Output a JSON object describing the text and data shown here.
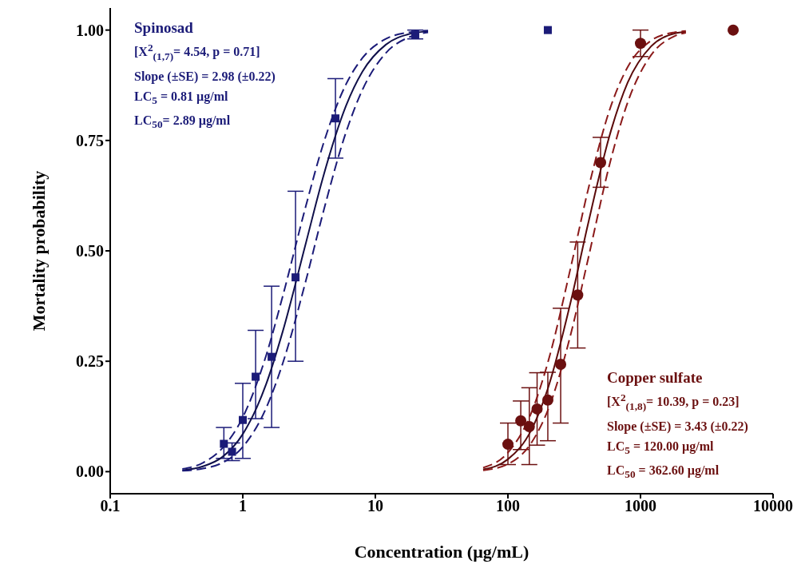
{
  "chart_data": {
    "type": "scatter",
    "xlabel": "Concentration (µg/mL)",
    "ylabel": "Mortality probability",
    "log": "x",
    "grid": false,
    "xlim": [
      0.1,
      10000
    ],
    "xticks": [
      0.1,
      1,
      10,
      100,
      1000,
      10000
    ],
    "ylim": [
      -0.05,
      1.05
    ],
    "yticks": [
      {
        "value": 0,
        "label": "0.00"
      },
      {
        "value": 0.25,
        "label": "0.25"
      },
      {
        "value": 0.5,
        "label": "0.50"
      },
      {
        "value": 0.75,
        "label": "0.75"
      },
      {
        "value": 1,
        "label": "1.00"
      }
    ],
    "annotations": [
      "[X$^{2}$$_{(1,7)}$= 4.54, p = 0.71]",
      "Slope (±SE) = 2.98 (±0.22)",
      "LC$_{5}$ = 0.81 µg/ml",
      "LC$_{50}$= 2.89 µg/ml",
      "[X$^{2}$$_{(1,8)}$= 10.39, p = 0.23]",
      "Slope (±SE) = 3.43 (±0.22)",
      "LC$_{5}$ = 120.00 µg/ml",
      "LC$_{50}$ = 362.60 µg/ml"
    ],
    "series": [
      {
        "name": "Spinosad",
        "color": "#1b1b78",
        "marker": "square",
        "x": [
          0.72,
          0.83,
          1,
          1.25,
          1.65,
          2.5,
          5,
          20,
          200
        ],
        "values": [
          0.063,
          0.045,
          0.117,
          0.215,
          0.26,
          0.44,
          0.8,
          0.99,
          1
        ],
        "errors": [
          [
            0.03,
            0.1
          ],
          [
            0.025,
            0.065
          ],
          [
            0.03,
            0.2
          ],
          [
            0.12,
            0.32
          ],
          [
            0.1,
            0.42
          ],
          [
            0.25,
            0.635
          ],
          [
            0.71,
            0.89
          ],
          [
            0.98,
            1
          ],
          null
        ]
      },
      {
        "type": "line",
        "color": "#10104a",
        "line_style": "solid",
        "x": [
          0.35,
          0.5,
          0.7,
          1,
          1.5,
          2,
          3,
          4,
          6,
          8,
          12,
          18,
          25
        ],
        "values": [
          0.003,
          0.012,
          0.033,
          0.085,
          0.198,
          0.317,
          0.519,
          0.663,
          0.828,
          0.906,
          0.967,
          0.991,
          0.997
        ]
      },
      {
        "type": "line",
        "color": "#1b1b78",
        "line_style": "dashed",
        "x": [
          0.35,
          0.5,
          0.7,
          1,
          1.5,
          2,
          3,
          4,
          6,
          8,
          12,
          18,
          25
        ],
        "values": [
          0.006,
          0.02,
          0.053,
          0.123,
          0.263,
          0.397,
          0.603,
          0.737,
          0.877,
          0.937,
          0.98,
          0.995,
          0.999
        ]
      },
      {
        "type": "line",
        "color": "#1b1b78",
        "line_style": "dashed",
        "x": [
          0.35,
          0.5,
          0.7,
          1,
          1.5,
          2,
          3,
          4,
          6,
          8,
          12,
          18,
          25
        ],
        "values": [
          0.002,
          0.007,
          0.02,
          0.056,
          0.144,
          0.245,
          0.434,
          0.582,
          0.768,
          0.865,
          0.948,
          0.984,
          0.995
        ]
      },
      {
        "name": "Copper sulfate",
        "color": "#6b1010",
        "marker": "circle",
        "x": [
          100,
          125,
          145,
          166,
          200,
          250,
          336,
          500,
          1000,
          5000
        ],
        "values": [
          0.062,
          0.115,
          0.102,
          0.142,
          0.162,
          0.243,
          0.4,
          0.7,
          0.97,
          1
        ],
        "errors": [
          [
            0.016,
            0.11
          ],
          [
            0.05,
            0.16
          ],
          [
            0.016,
            0.19
          ],
          [
            0.06,
            0.224
          ],
          [
            0.07,
            0.225
          ],
          [
            0.11,
            0.37
          ],
          [
            0.28,
            0.52
          ],
          [
            0.644,
            0.757
          ],
          [
            0.94,
            1
          ],
          null
        ]
      },
      {
        "type": "line",
        "color": "#5a0a0a",
        "line_style": "solid",
        "x": [
          65,
          100,
          150,
          200,
          300,
          400,
          600,
          800,
          1200,
          1800,
          2200
        ],
        "values": [
          0.005,
          0.028,
          0.094,
          0.188,
          0.389,
          0.558,
          0.773,
          0.881,
          0.963,
          0.992,
          0.996
        ]
      },
      {
        "type": "line",
        "color": "#8b1a1a",
        "line_style": "dashed",
        "x": [
          65,
          100,
          150,
          200,
          300,
          400,
          600,
          800,
          1200,
          1800,
          2200
        ],
        "values": [
          0.009,
          0.043,
          0.133,
          0.247,
          0.467,
          0.635,
          0.829,
          0.916,
          0.976,
          0.995,
          0.998
        ]
      },
      {
        "type": "line",
        "color": "#8b1a1a",
        "line_style": "dashed",
        "x": [
          65,
          100,
          150,
          200,
          300,
          400,
          600,
          800,
          1200,
          1800,
          2200
        ],
        "values": [
          0.003,
          0.017,
          0.065,
          0.139,
          0.315,
          0.478,
          0.709,
          0.836,
          0.943,
          0.986,
          0.994
        ]
      }
    ]
  }
}
